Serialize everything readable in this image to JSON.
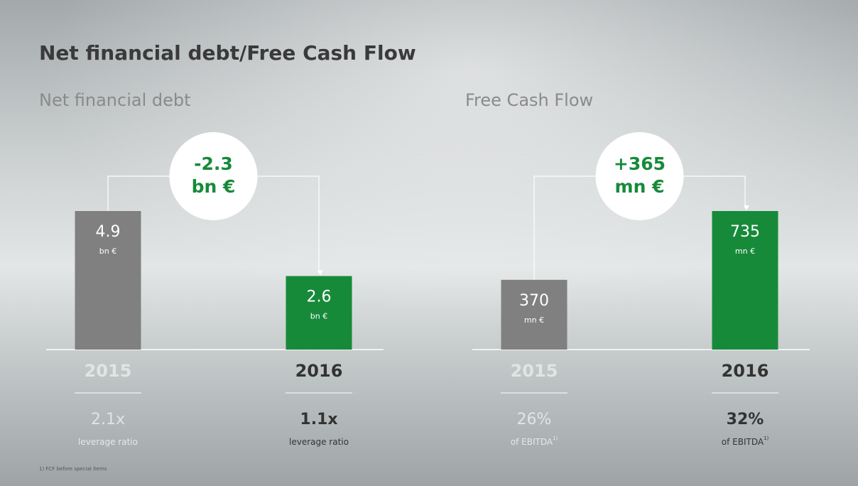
{
  "title": "Net financial debt/Free Cash Flow",
  "footnote": "1) FCF before special items",
  "chart_data": [
    {
      "type": "bar",
      "title": "Net financial debt",
      "categories": [
        "2015",
        "2016"
      ],
      "values": [
        4.9,
        2.6
      ],
      "colors": [
        "#808080",
        "#178a3a"
      ],
      "unit": "bn €",
      "difference": -2.3,
      "difference_unit": "bn €",
      "ratios": [
        {
          "value": 2.1,
          "label": "2.1x"
        },
        {
          "value": 1.1,
          "label": "1.1x"
        }
      ],
      "ratio_caption": "leverage ratio"
    },
    {
      "type": "bar",
      "title": "Free Cash Flow",
      "categories": [
        "2015",
        "2016"
      ],
      "values": [
        370,
        735
      ],
      "colors": [
        "#808080",
        "#178a3a"
      ],
      "unit": "mn €",
      "difference": {
        "value": 365,
        "label": "+365"
      },
      "difference_unit": "mn €",
      "ratios": [
        {
          "value": 26,
          "label": "26%"
        },
        {
          "value": 32,
          "label": "32%"
        }
      ],
      "ratio_caption": "of EBITDA",
      "footnote_marker": "1)"
    }
  ]
}
